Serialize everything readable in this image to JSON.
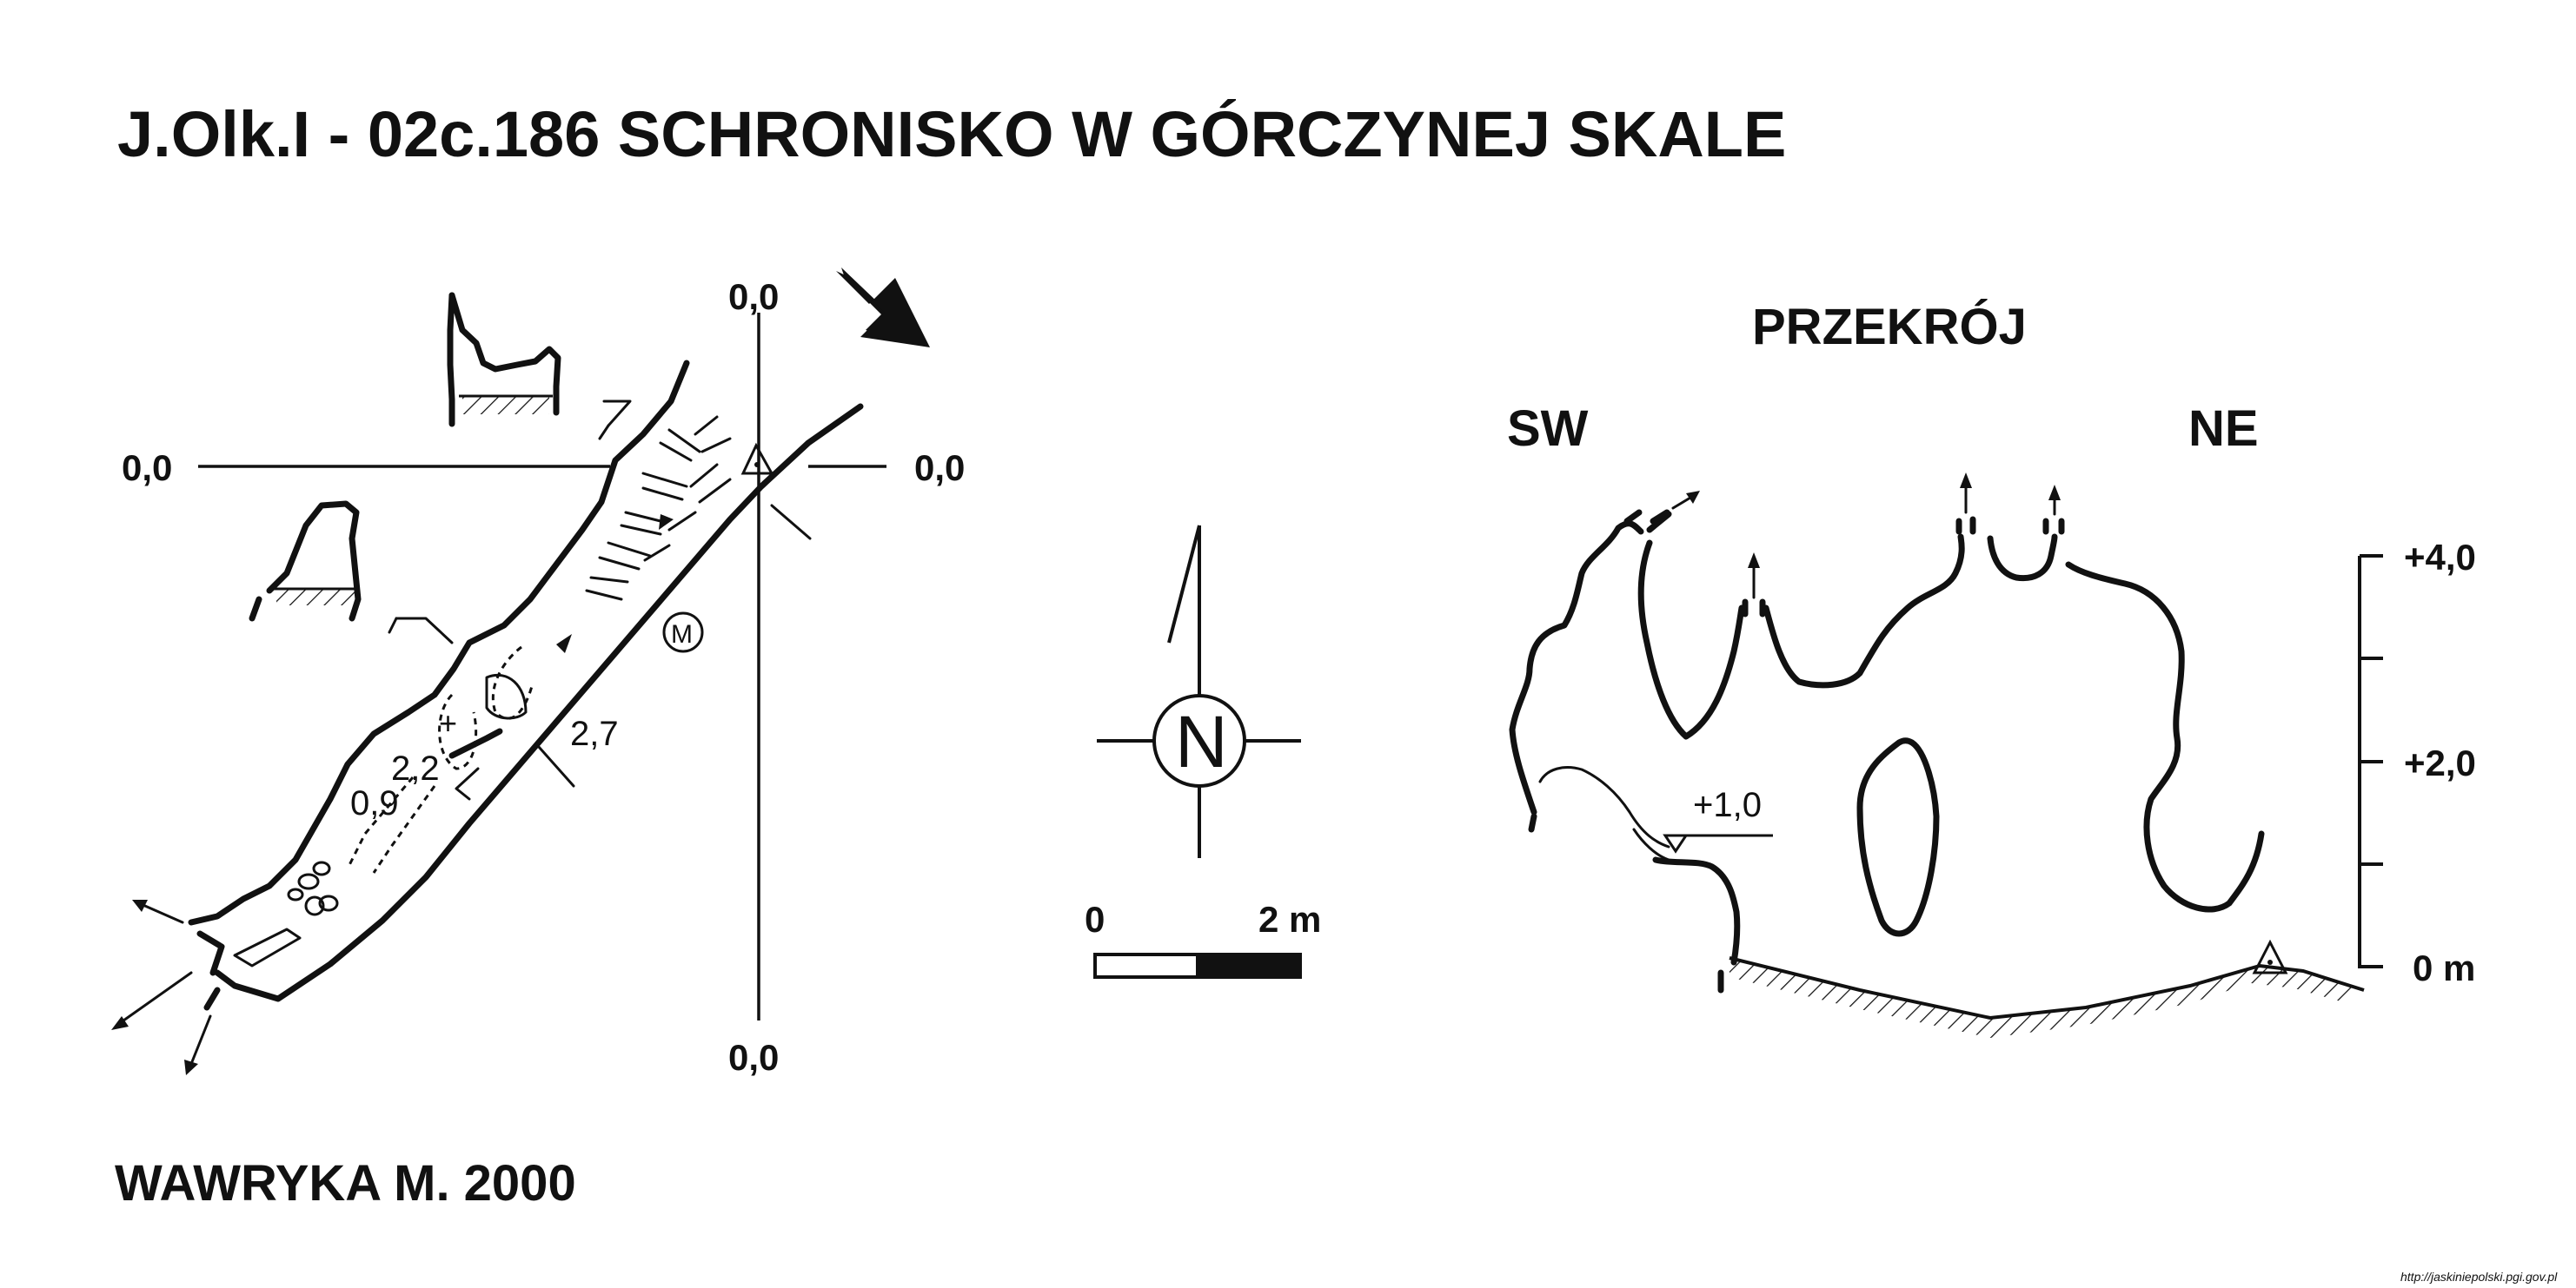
{
  "title": "J.Olk.I - 02c.186  SCHRONISKO W GÓRCZYNEJ SKALE",
  "author": "WAWRYKA M. 2000",
  "source_url": "http://jaskiniepolski.pgi.gov.pl",
  "plan": {
    "grid_labels": {
      "top": "0,0",
      "bottom": "0,0",
      "left": "0,0",
      "right": "0,0"
    },
    "depth_labels": [
      "2,7",
      "2,2",
      "0,9"
    ],
    "symbol_label": "M"
  },
  "north_arrow": {
    "label": "N"
  },
  "scale_bar": {
    "start_label": "0",
    "end_label": "2 m"
  },
  "section": {
    "title": "PRZEKRÓJ",
    "left_direction": "SW",
    "right_direction": "NE",
    "level_label": "+1,0",
    "height_scale": [
      "+4,0",
      "+2,0",
      "0 m"
    ]
  },
  "colors": {
    "ink": "#111111",
    "background": "#ffffff"
  }
}
